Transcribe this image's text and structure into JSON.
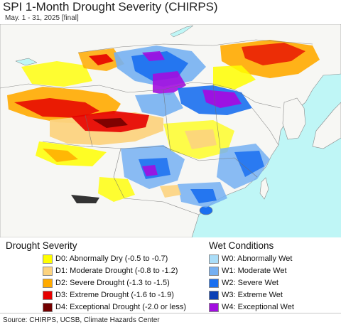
{
  "header": {
    "title": "SPI 1-Month Drought Severity (CHIRPS)",
    "subtitle": "May. 1 - 31, 2025 [final]"
  },
  "colors": {
    "ocean": "#bff6f6",
    "land_base": "#f7f7f4",
    "boundary": "#7a7a7a"
  },
  "legend": {
    "drought": {
      "title": "Drought Severity",
      "items": [
        {
          "code": "D0",
          "label": "D0: Abnormally Dry (-0.5 to -0.7)",
          "color": "#fffe00"
        },
        {
          "code": "D1",
          "label": "D1: Moderate Drought (-0.8 to -1.2)",
          "color": "#fcd37f"
        },
        {
          "code": "D2",
          "label": "D2: Severe Drought (-1.3 to -1.5)",
          "color": "#ffaa00"
        },
        {
          "code": "D3",
          "label": "D3: Extreme Drought (-1.6 to -1.9)",
          "color": "#e60000"
        },
        {
          "code": "D4",
          "label": "D4: Exceptional Drought (-2.0 or less)",
          "color": "#730000"
        }
      ]
    },
    "wet": {
      "title": "Wet Conditions",
      "items": [
        {
          "code": "W0",
          "label": "W0: Abnormally Wet",
          "color": "#aaddf8"
        },
        {
          "code": "W1",
          "label": "W1: Moderate Wet",
          "color": "#76b0f2"
        },
        {
          "code": "W2",
          "label": "W2: Severe Wet",
          "color": "#1a6ff0"
        },
        {
          "code": "W3",
          "label": "W3: Extreme Wet",
          "color": "#0a3fb5"
        },
        {
          "code": "W4",
          "label": "W4: Exceptional Wet",
          "color": "#a20de0"
        }
      ]
    }
  },
  "footer": {
    "source": "Source: CHIRPS, UCSB, Climate Hazards Center"
  }
}
